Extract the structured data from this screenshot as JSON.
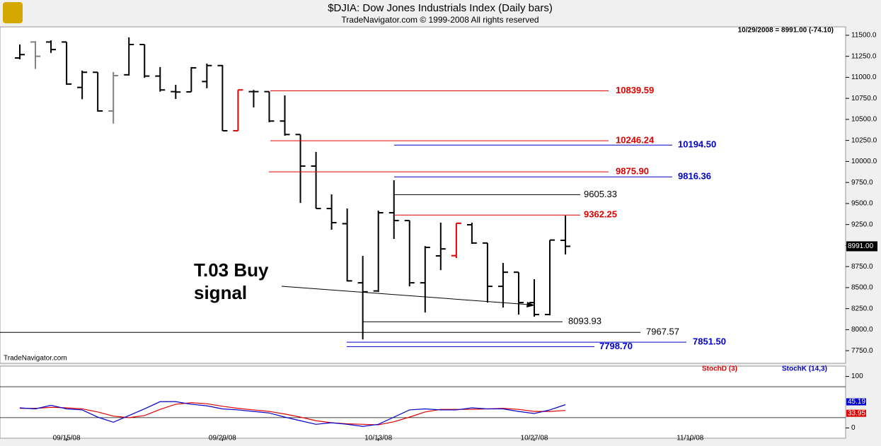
{
  "chart_data": [
    {
      "type": "ohlc",
      "title": "$DJIA:  Dow Jones Industrials Index  (Daily bars)",
      "subtitle": "TradeNavigator.com © 1999-2008 All rights reserved",
      "info": "10/29/2008 = 8991.00 (-74.10)",
      "watermark": "TradeNavigator.com",
      "annotation": [
        "T.03 Buy",
        "signal"
      ],
      "categories": [
        null,
        null,
        null,
        "09/15/08",
        null,
        null,
        null,
        null,
        null,
        null,
        null,
        null,
        null,
        "09/29/08",
        null,
        null,
        null,
        null,
        null,
        null,
        null,
        null,
        null,
        "10/13/08",
        null,
        null,
        null,
        null,
        null,
        null,
        null,
        null,
        null,
        "10/27/08",
        null,
        null,
        null,
        null,
        null,
        null,
        null,
        null,
        null,
        "11/10/08",
        null,
        null,
        null,
        null,
        null,
        null,
        null,
        null,
        null
      ],
      "open": [
        11230,
        11420,
        11420,
        11420,
        10880,
        11060,
        10600,
        11030,
        11390,
        11015,
        10830,
        10827,
        10950,
        11140,
        10365,
        10830,
        10830,
        10480,
        10320,
        9945,
        9440,
        9260,
        8557,
        8460,
        9390,
        9297,
        8557,
        8877,
        8880,
        9247,
        9030,
        8515,
        8683,
        8322,
        8180,
        9062,
        null,
        null,
        null,
        null,
        null,
        null,
        null,
        null,
        null,
        null,
        null,
        null,
        null,
        null,
        null,
        null,
        null
      ],
      "high": [
        11390,
        11430,
        11440,
        11420,
        11080,
        11060,
        11063,
        11475,
        11391,
        11122,
        10911,
        11122,
        11163,
        11146,
        10850,
        10850,
        10830,
        10785,
        10320,
        10113,
        9608,
        9440,
        8877,
        9415,
        9776,
        9297,
        8994,
        9272,
        9265,
        9272,
        9030,
        8793,
        8683,
        8600,
        9065,
        9356,
        null,
        null,
        null,
        null,
        null,
        null,
        null,
        null,
        null,
        null,
        null,
        null,
        null,
        null,
        null,
        null,
        null
      ],
      "low": [
        11214,
        11100,
        11290,
        10910,
        10740,
        10592,
        10450,
        11020,
        10995,
        10830,
        10743,
        10827,
        10870,
        10365,
        10365,
        10642,
        10466,
        10306,
        9507,
        9440,
        9188,
        8574,
        7884,
        8448,
        9079,
        8515,
        8204,
        8708,
        8851,
        9020,
        8322,
        8263,
        8179,
        8154,
        8170,
        8894,
        null,
        null,
        null,
        null,
        null,
        null,
        null,
        null,
        null,
        null,
        null,
        null,
        null,
        null,
        null,
        null,
        null
      ],
      "close": [
        11270,
        11250,
        11330,
        10920,
        11060,
        10600,
        11020,
        11390,
        11015,
        10850,
        10825,
        11113,
        11140,
        10365,
        10850,
        10830,
        10480,
        10320,
        9945,
        9440,
        9272,
        8580,
        8450,
        9390,
        9297,
        8557,
        8978,
        8960,
        9265,
        9030,
        8515,
        8683,
        8322,
        8180,
        9065,
        8991,
        null,
        null,
        null,
        null,
        null,
        null,
        null,
        null,
        null,
        null,
        null,
        null,
        null,
        null,
        null,
        null,
        null
      ],
      "bar_colors": [
        "#000000",
        "#808080",
        "#000000",
        "#000000",
        "#000000",
        "#000000",
        "#808080",
        "#000000",
        "#000000",
        "#000000",
        "#000000",
        "#000000",
        "#000000",
        "#000000",
        "#e00000",
        "#000000",
        "#000000",
        "#000000",
        "#000000",
        "#000000",
        "#000000",
        "#000000",
        "#000000",
        "#000000",
        "#000000",
        "#000000",
        "#000000",
        "#000000",
        "#e00000",
        "#000000",
        "#000000",
        "#000000",
        "#000000",
        "#000000",
        "#000000",
        "#000000",
        null,
        null,
        null,
        null,
        null,
        null,
        null,
        null,
        null,
        null,
        null,
        null,
        null,
        null,
        null,
        null,
        null
      ],
      "close_label": "8991.00",
      "ylim": [
        7600,
        11600
      ],
      "yticks": [
        {
          "value": 7750,
          "label": "7750.0"
        },
        {
          "value": 8000,
          "label": "8000.0"
        },
        {
          "value": 8250,
          "label": "8250.0"
        },
        {
          "value": 8500,
          "label": "8500.0"
        },
        {
          "value": 8750,
          "label": "8750.0"
        },
        {
          "value": 9000,
          "label": "9000.0"
        },
        {
          "value": 9250,
          "label": "9250.0"
        },
        {
          "value": 9500,
          "label": "9500.0"
        },
        {
          "value": 9750,
          "label": "9750.0"
        },
        {
          "value": 10000,
          "label": "10000.0"
        },
        {
          "value": 10250,
          "label": "10250.0"
        },
        {
          "value": 10500,
          "label": "10500.0"
        },
        {
          "value": 10750,
          "label": "10750.0"
        },
        {
          "value": 11000,
          "label": "11000.0"
        },
        {
          "value": 11250,
          "label": "11250.0"
        },
        {
          "value": 11500,
          "label": "11500.0"
        }
      ],
      "levels": [
        {
          "value": 10839.59,
          "label": "10839.59",
          "color": "#e00000"
        },
        {
          "value": 10246.24,
          "label": "10246.24",
          "color": "#e00000"
        },
        {
          "value": 9875.9,
          "label": "9875.90",
          "color": "#e00000"
        },
        {
          "value": 9362.25,
          "label": "9362.25",
          "color": "#e00000"
        },
        {
          "value": 10194.5,
          "label": "10194.50",
          "color": "#0000cc"
        },
        {
          "value": 9816.36,
          "label": "9816.36",
          "color": "#0000cc"
        },
        {
          "value": 7851.5,
          "label": "7851.50",
          "color": "#0000cc"
        },
        {
          "value": 7798.7,
          "label": "7798.70",
          "color": "#0000cc"
        },
        {
          "value": 9605.33,
          "label": "9605.33",
          "color": "#000000"
        },
        {
          "value": 8093.93,
          "label": "8093.93",
          "color": "#000000"
        },
        {
          "value": 7967.57,
          "label": "7967.57",
          "color": "#000000"
        }
      ]
    },
    {
      "type": "line",
      "series": [
        {
          "name": "StochD (3)",
          "color": "#e00000",
          "values": [
            38,
            38,
            40,
            39,
            37,
            31,
            23,
            20,
            24,
            36,
            46,
            49,
            47,
            42,
            38,
            35,
            32,
            27,
            21,
            14,
            10,
            8,
            7,
            6,
            12,
            21,
            31,
            36,
            36,
            36,
            37,
            38,
            36,
            32,
            32,
            33.95,
            null,
            null,
            null,
            null,
            null,
            null,
            null,
            null,
            null,
            null,
            null,
            null,
            null,
            null,
            null,
            null,
            null
          ]
        },
        {
          "name": "StochK (14,3)",
          "color": "#0000cc",
          "values": [
            39,
            37,
            44,
            37,
            35,
            21,
            11,
            24,
            37,
            51,
            51,
            46,
            43,
            37,
            35,
            32,
            29,
            21,
            14,
            7,
            10,
            7,
            3,
            7,
            21,
            35,
            37,
            35,
            35,
            39,
            37,
            37,
            32,
            28,
            35,
            45.19,
            null,
            null,
            null,
            null,
            null,
            null,
            null,
            null,
            null,
            null,
            null,
            null,
            null,
            null,
            null,
            null,
            null
          ]
        }
      ],
      "ylim": [
        -20,
        120
      ],
      "yticks": [
        0,
        100
      ],
      "ref_lines": [
        20,
        80
      ]
    }
  ]
}
